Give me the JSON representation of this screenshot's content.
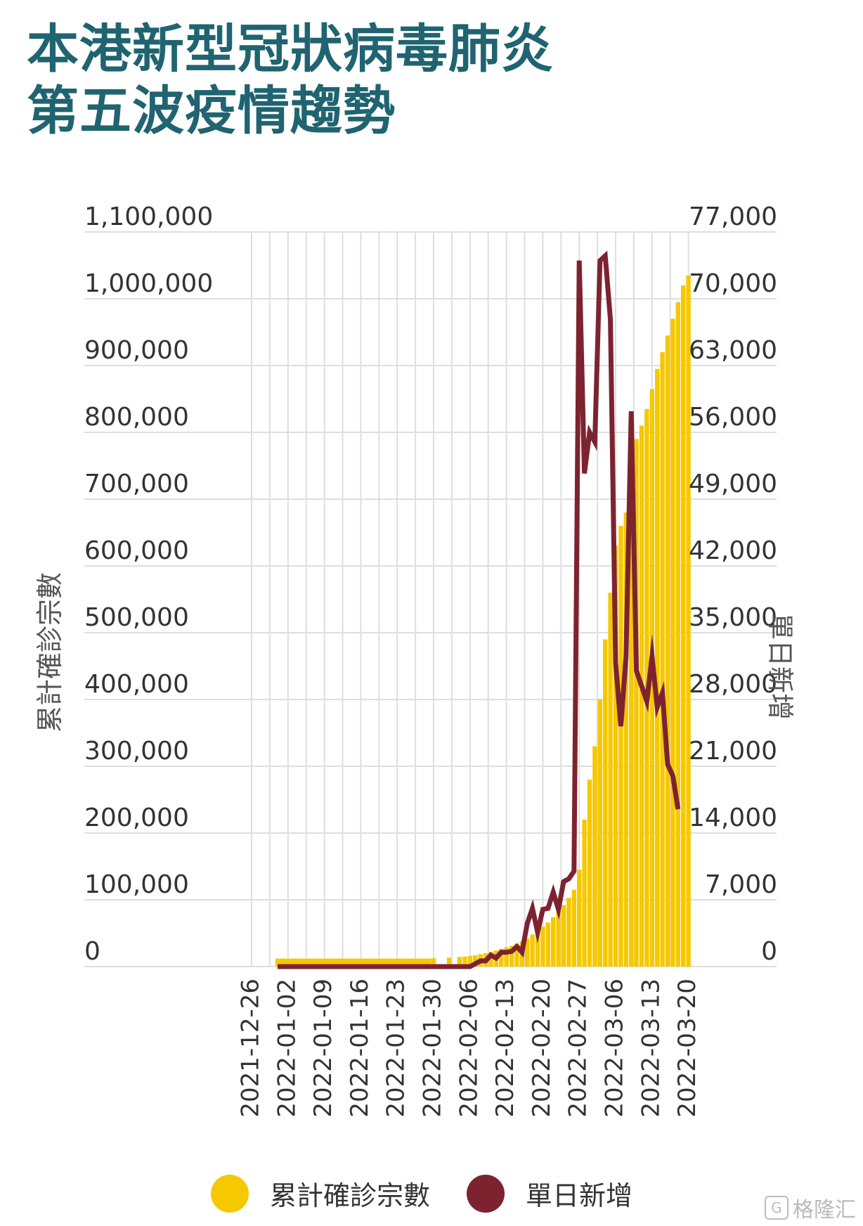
{
  "title": {
    "line1": "本港新型冠狀病毒肺炎",
    "line2": "第五波疫情趨勢"
  },
  "colors": {
    "title": "#1f6470",
    "cumulative": "#f5c800",
    "daily": "#7d2330",
    "grid": "#dedede",
    "text": "#333333"
  },
  "chart_data": {
    "type": "bar+line",
    "y_left_label": "累計確診宗數",
    "y_right_label": "單日新增",
    "y_left_ticks": [
      "0",
      "100,000",
      "200,000",
      "300,000",
      "400,000",
      "500,000",
      "600,000",
      "700,000",
      "800,000",
      "900,000",
      "1,000,000",
      "1,100,000"
    ],
    "y_right_ticks": [
      "0",
      "7,000",
      "14,000",
      "21,000",
      "28,000",
      "35,000",
      "42,000",
      "49,000",
      "56,000",
      "63,000",
      "70,000",
      "77,000"
    ],
    "y_left_range": [
      0,
      1100000
    ],
    "y_right_range": [
      0,
      77000
    ],
    "x_tick_labels": [
      "2021-12-26",
      "2022-01-02",
      "2022-01-09",
      "2022-01-16",
      "2022-01-23",
      "2022-01-30",
      "2022-02-06",
      "2022-02-13",
      "2022-02-20",
      "2022-02-27",
      "2022-03-06",
      "2022-03-13",
      "2022-03-20"
    ],
    "grid": true,
    "series": [
      {
        "name": "累計確診宗數",
        "type": "bar",
        "axis": "left",
        "color": "#f5c800",
        "points": [
          [
            "2021-12-31",
            12000
          ],
          [
            "2022-01-30",
            12500
          ],
          [
            "2022-02-02",
            13500
          ],
          [
            "2022-02-04",
            14500
          ],
          [
            "2022-02-05",
            15000
          ],
          [
            "2022-02-06",
            16000
          ],
          [
            "2022-02-07",
            17000
          ],
          [
            "2022-02-08",
            18500
          ],
          [
            "2022-02-09",
            20000
          ],
          [
            "2022-02-10",
            22000
          ],
          [
            "2022-02-11",
            24000
          ],
          [
            "2022-02-12",
            26500
          ],
          [
            "2022-02-13",
            29000
          ],
          [
            "2022-02-14",
            31000
          ],
          [
            "2022-02-15",
            34000
          ],
          [
            "2022-02-16",
            38000
          ],
          [
            "2022-02-17",
            42000
          ],
          [
            "2022-02-18",
            48000
          ],
          [
            "2022-02-19",
            54000
          ],
          [
            "2022-02-20",
            60000
          ],
          [
            "2022-02-21",
            66000
          ],
          [
            "2022-02-22",
            74000
          ],
          [
            "2022-02-23",
            82000
          ],
          [
            "2022-02-24",
            92000
          ],
          [
            "2022-02-25",
            103000
          ],
          [
            "2022-02-26",
            115000
          ],
          [
            "2022-02-27",
            145000
          ],
          [
            "2022-02-28",
            220000
          ],
          [
            "2022-03-01",
            280000
          ],
          [
            "2022-03-02",
            330000
          ],
          [
            "2022-03-03",
            400000
          ],
          [
            "2022-03-04",
            490000
          ],
          [
            "2022-03-05",
            560000
          ],
          [
            "2022-03-06",
            630000
          ],
          [
            "2022-03-07",
            660000
          ],
          [
            "2022-03-08",
            680000
          ],
          [
            "2022-03-09",
            725000
          ],
          [
            "2022-03-10",
            790000
          ],
          [
            "2022-03-11",
            810000
          ],
          [
            "2022-03-12",
            835000
          ],
          [
            "2022-03-13",
            865000
          ],
          [
            "2022-03-14",
            895000
          ],
          [
            "2022-03-15",
            920000
          ],
          [
            "2022-03-16",
            945000
          ],
          [
            "2022-03-17",
            970000
          ],
          [
            "2022-03-18",
            995000
          ],
          [
            "2022-03-19",
            1020000
          ],
          [
            "2022-03-20",
            1035000
          ]
        ]
      },
      {
        "name": "單日新增",
        "type": "line",
        "axis": "right",
        "color": "#7d2330",
        "points": [
          [
            "2021-12-31",
            0
          ],
          [
            "2022-02-06",
            0
          ],
          [
            "2022-02-07",
            300
          ],
          [
            "2022-02-08",
            600
          ],
          [
            "2022-02-09",
            600
          ],
          [
            "2022-02-10",
            1200
          ],
          [
            "2022-02-11",
            900
          ],
          [
            "2022-02-12",
            1500
          ],
          [
            "2022-02-13",
            1500
          ],
          [
            "2022-02-14",
            1600
          ],
          [
            "2022-02-15",
            2100
          ],
          [
            "2022-02-16",
            1500
          ],
          [
            "2022-02-17",
            4500
          ],
          [
            "2022-02-18",
            6100
          ],
          [
            "2022-02-19",
            3600
          ],
          [
            "2022-02-20",
            6000
          ],
          [
            "2022-02-21",
            6100
          ],
          [
            "2022-02-22",
            7800
          ],
          [
            "2022-02-23",
            6000
          ],
          [
            "2022-02-24",
            8900
          ],
          [
            "2022-02-25",
            9200
          ],
          [
            "2022-02-26",
            10000
          ],
          [
            "2022-02-27",
            74000
          ],
          [
            "2022-02-28",
            51700
          ],
          [
            "2022-03-01",
            56000
          ],
          [
            "2022-03-02",
            55000
          ],
          [
            "2022-03-03",
            74000
          ],
          [
            "2022-03-04",
            74500
          ],
          [
            "2022-03-05",
            67800
          ],
          [
            "2022-03-06",
            31800
          ],
          [
            "2022-03-07",
            25200
          ],
          [
            "2022-03-08",
            32500
          ],
          [
            "2022-03-09",
            58200
          ],
          [
            "2022-03-10",
            31000
          ],
          [
            "2022-03-11",
            29400
          ],
          [
            "2022-03-12",
            27800
          ],
          [
            "2022-03-13",
            32500
          ],
          [
            "2022-03-14",
            27200
          ],
          [
            "2022-03-15",
            28700
          ],
          [
            "2022-03-16",
            21200
          ],
          [
            "2022-03-17",
            20000
          ],
          [
            "2022-03-18",
            16500
          ]
        ]
      }
    ]
  },
  "legend": [
    {
      "label": "累計確診宗數",
      "color": "#f5c800"
    },
    {
      "label": "單日新增",
      "color": "#7d2330"
    }
  ],
  "watermark": {
    "text": "格隆汇",
    "icon": "gelonghui-logo-icon"
  }
}
